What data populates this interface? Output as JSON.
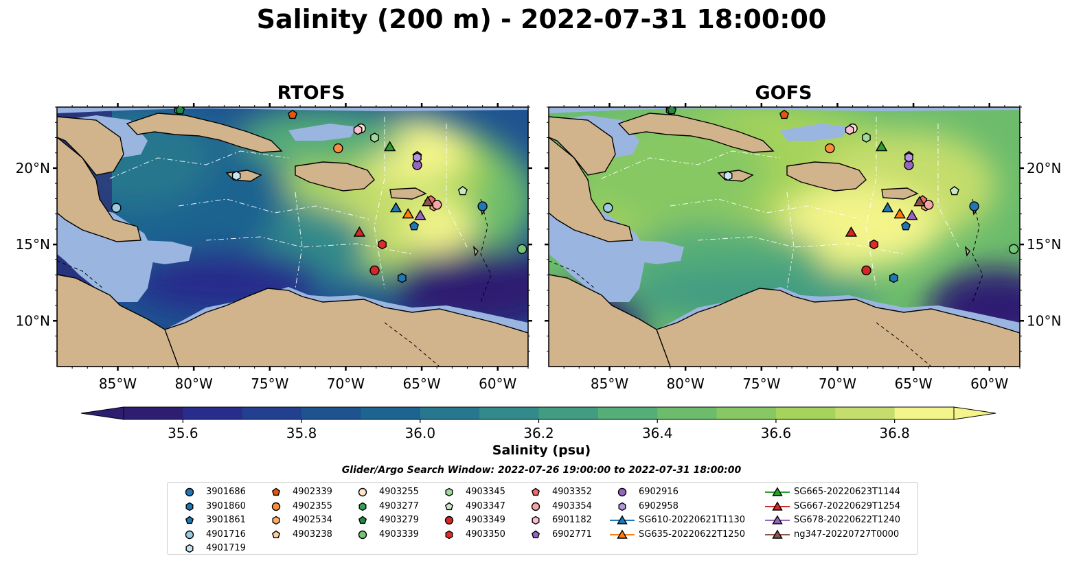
{
  "title": "Salinity (200 m) - 2022-07-31 18:00:00",
  "panels": [
    {
      "title": "RTOFS"
    },
    {
      "title": "GOFS"
    }
  ],
  "lon_ticks": [
    "85°W",
    "80°W",
    "75°W",
    "70°W",
    "65°W",
    "60°W"
  ],
  "lat_ticks": [
    "20°N",
    "15°N",
    "10°N"
  ],
  "map_extent": {
    "lon": [
      -89,
      -58
    ],
    "lat": [
      7,
      24
    ]
  },
  "colorbar": {
    "label": "Salinity (psu)",
    "ticks": [
      "35.6",
      "35.8",
      "36.0",
      "36.2",
      "36.4",
      "36.6",
      "36.8"
    ],
    "range": [
      35.5,
      36.9
    ],
    "colors": [
      "#2e1e72",
      "#282c8c",
      "#22408f",
      "#1e5390",
      "#1d6490",
      "#27778e",
      "#338a8a",
      "#429c82",
      "#55ad78",
      "#6cbc6c",
      "#87c864",
      "#a6d35c",
      "#c4dd6c",
      "#f3f48a"
    ]
  },
  "legend_title": "Glider/Argo Search Window: 2022-07-26 19:00:00 to 2022-07-31 18:00:00",
  "colors": {
    "land": "#d2b48c",
    "shelf": "#9ab6e0",
    "ocean_fresh": "#2b2c7e"
  },
  "floats": [
    {
      "id": "3901686",
      "marker": "circle",
      "color": "#1f77b4",
      "lon": -61,
      "lat": 17.5
    },
    {
      "id": "3901860",
      "marker": "hexagon",
      "color": "#1f77b4",
      "lon": -66.3,
      "lat": 12.8
    },
    {
      "id": "3901861",
      "marker": "pentagon",
      "color": "#1f77b4",
      "lon": -65.5,
      "lat": 16.2
    },
    {
      "id": "4901716",
      "marker": "circle",
      "color": "#9ecae1",
      "lon": -85.1,
      "lat": 17.4
    },
    {
      "id": "4901719",
      "marker": "hexagon",
      "color": "#c6e4f2",
      "lon": -77.2,
      "lat": 19.5
    },
    {
      "id": "4902339",
      "marker": "pentagon",
      "color": "#e6550d",
      "lon": -73.5,
      "lat": 23.5
    },
    {
      "id": "4902355",
      "marker": "circle",
      "color": "#fd8d3c",
      "lon": -70.5,
      "lat": 21.3
    },
    {
      "id": "4902534",
      "marker": "hexagon",
      "color": "#fdae6b",
      "lon": -64.2,
      "lat": 17.5
    },
    {
      "id": "4903238",
      "marker": "pentagon",
      "color": "#fdd0a2",
      "lon": -64.5,
      "lat": 17.8
    },
    {
      "id": "4903255",
      "marker": "circle",
      "color": "#fee6ce",
      "lon": -69,
      "lat": 22.6
    },
    {
      "id": "4903277",
      "marker": "hexagon",
      "color": "#31a354",
      "lon": -81,
      "lat": 23.8
    },
    {
      "id": "4903279",
      "marker": "pentagon",
      "color": "#238b45",
      "lon": -80.9,
      "lat": 23.8
    },
    {
      "id": "4903339",
      "marker": "circle",
      "color": "#74c476",
      "lon": -58.4,
      "lat": 14.7
    },
    {
      "id": "4903345",
      "marker": "hexagon",
      "color": "#a1d99b",
      "lon": -68.1,
      "lat": 22
    },
    {
      "id": "4903347",
      "marker": "pentagon",
      "color": "#c7e9c0",
      "lon": -62.3,
      "lat": 18.5
    },
    {
      "id": "4903349",
      "marker": "circle",
      "color": "#d62728",
      "lon": -68.1,
      "lat": 13.3
    },
    {
      "id": "4903350",
      "marker": "hexagon",
      "color": "#de2d26",
      "lon": -67.6,
      "lat": 15
    },
    {
      "id": "4903352",
      "marker": "pentagon",
      "color": "#ef6a6a",
      "lon": -64.4,
      "lat": 17.9
    },
    {
      "id": "4903354",
      "marker": "circle",
      "color": "#f4a6a6",
      "lon": -64,
      "lat": 17.6
    },
    {
      "id": "6901182",
      "marker": "hexagon",
      "color": "#fcbfd2",
      "lon": -69.2,
      "lat": 22.5
    },
    {
      "id": "6902771",
      "marker": "pentagon",
      "color": "#9467bd",
      "lon": -65.3,
      "lat": 20.8
    },
    {
      "id": "6902916",
      "marker": "circle",
      "color": "#9467bd",
      "lon": -65.3,
      "lat": 20.2
    },
    {
      "id": "6902958",
      "marker": "hexagon",
      "color": "#b794e0",
      "lon": -65.3,
      "lat": 20.7
    }
  ],
  "gliders": [
    {
      "id": "SG610-20220621T1130",
      "color": "#1f77b4",
      "lon": -66.7,
      "lat": 17.4
    },
    {
      "id": "SG635-20220622T1250",
      "color": "#ff7f0e",
      "lon": -65.9,
      "lat": 17
    },
    {
      "id": "SG665-20220623T1144",
      "color": "#2ca02c",
      "lon": -67.1,
      "lat": 21.4
    },
    {
      "id": "SG667-20220629T1254",
      "color": "#d62728",
      "lon": -69.1,
      "lat": 15.8
    },
    {
      "id": "SG678-20220622T1240",
      "color": "#9467bd",
      "lon": -65.1,
      "lat": 16.9
    },
    {
      "id": "ng347-20220727T0000",
      "color": "#8c564b",
      "lon": -64.6,
      "lat": 17.8
    }
  ]
}
